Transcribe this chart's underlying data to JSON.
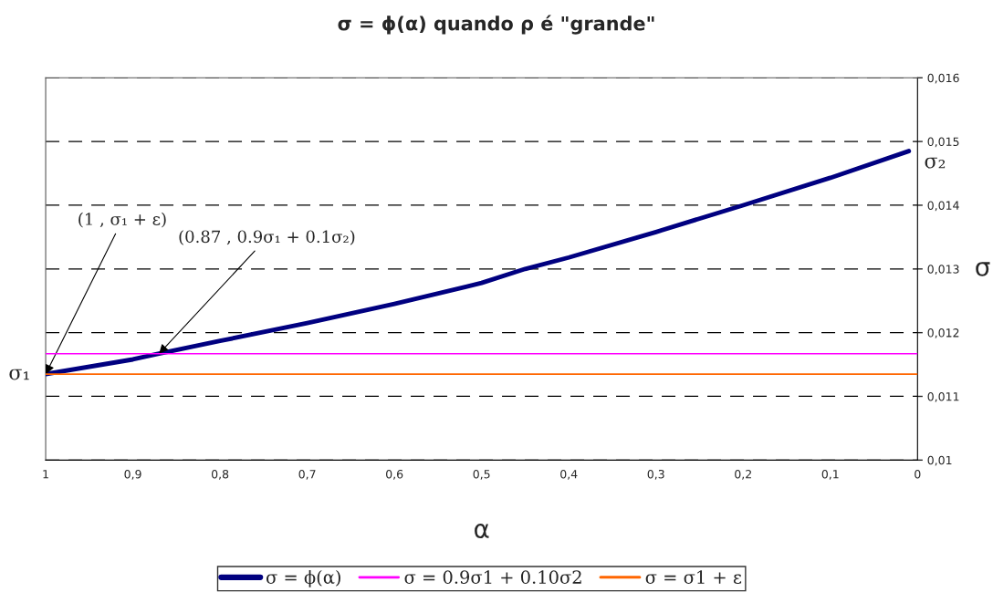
{
  "chart_data": {
    "type": "line",
    "title": "σ = ϕ(α) quando ρ é \"grande\"",
    "xlabel": "α",
    "ylabel": "σ",
    "xlim": [
      1,
      0
    ],
    "ylim": [
      0.01,
      0.016
    ],
    "xticks": [
      1,
      {
        "value": 0.9,
        "label": "0,9"
      },
      {
        "value": 0.8,
        "label": "0,8"
      },
      {
        "value": 0.7,
        "label": "0,7"
      },
      {
        "value": 0.6,
        "label": "0,6"
      },
      {
        "value": 0.5,
        "label": "0,5"
      },
      {
        "value": 0.4,
        "label": "0,4"
      },
      {
        "value": 0.3,
        "label": "0,3"
      },
      {
        "value": 0.2,
        "label": "0,2"
      },
      {
        "value": 0.1,
        "label": "0,1"
      },
      0
    ],
    "yticks": [
      {
        "value": 0.01,
        "label": "0,01"
      },
      {
        "value": 0.011,
        "label": "0,011"
      },
      {
        "value": 0.012,
        "label": "0,012"
      },
      {
        "value": 0.013,
        "label": "0,013"
      },
      {
        "value": 0.014,
        "label": "0,014"
      },
      {
        "value": 0.015,
        "label": "0,015"
      },
      {
        "value": 0.016,
        "label": "0,016"
      }
    ],
    "grid": "y",
    "legend": "bottom",
    "marker": "none",
    "line_style": "solid",
    "series": [
      {
        "name": "σ = ϕ(α)",
        "color": "#000080",
        "x": [
          1,
          0.9,
          0.87,
          0.8,
          0.7,
          0.6,
          0.5,
          0.45,
          0.4,
          0.3,
          0.2,
          0.1,
          0.01
        ],
        "values": [
          0.01135,
          0.01158,
          0.01167,
          0.01187,
          0.01215,
          0.01245,
          0.01278,
          0.013,
          0.01318,
          0.01358,
          0.014,
          0.01443,
          0.01485
        ]
      },
      {
        "name": "σ = 0.9σ1 + 0.10σ2",
        "color": "#ff00ff",
        "x": [
          1,
          0
        ],
        "values": [
          0.01167,
          0.01167
        ]
      },
      {
        "name": "σ = σ1 + ε",
        "color": "#ff6600",
        "x": [
          1,
          0
        ],
        "values": [
          0.01135,
          0.01135
        ]
      }
    ],
    "annotations": [
      {
        "text": "(1 , σ₁ + ε)",
        "x": 1,
        "y": 0.01135
      },
      {
        "text": "(0.87 , 0.9σ₁ + 0.1σ₂)",
        "x": 0.87,
        "y": 0.01167
      },
      {
        "text": "σ₁",
        "x": 1,
        "y": 0.01135
      },
      {
        "text": "σ₂",
        "x": 0.01,
        "y": 0.01485
      }
    ]
  }
}
